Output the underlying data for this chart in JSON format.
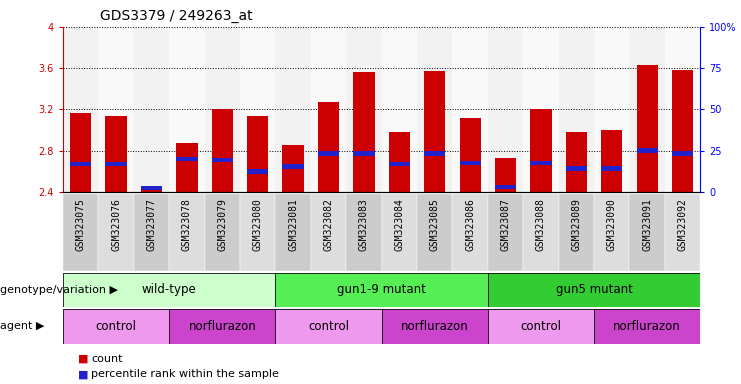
{
  "title": "GDS3379 / 249263_at",
  "samples": [
    "GSM323075",
    "GSM323076",
    "GSM323077",
    "GSM323078",
    "GSM323079",
    "GSM323080",
    "GSM323081",
    "GSM323082",
    "GSM323083",
    "GSM323084",
    "GSM323085",
    "GSM323086",
    "GSM323087",
    "GSM323088",
    "GSM323089",
    "GSM323090",
    "GSM323091",
    "GSM323092"
  ],
  "count_values": [
    3.17,
    3.14,
    2.45,
    2.87,
    3.2,
    3.14,
    2.86,
    3.27,
    3.56,
    2.98,
    3.57,
    3.12,
    2.73,
    3.2,
    2.98,
    3.0,
    3.63,
    3.58
  ],
  "percentile_values": [
    2.67,
    2.67,
    2.44,
    2.72,
    2.71,
    2.6,
    2.65,
    2.77,
    2.77,
    2.67,
    2.77,
    2.68,
    2.45,
    2.68,
    2.63,
    2.63,
    2.8,
    2.77
  ],
  "ymin": 2.4,
  "ymax": 4.0,
  "yticks_left": [
    2.4,
    2.8,
    3.2,
    3.6,
    4.0
  ],
  "ytick_labels_left": [
    "2.4",
    "2.8",
    "3.2",
    "3.6",
    "4"
  ],
  "yticks_right": [
    0,
    25,
    50,
    75,
    100
  ],
  "ytick_labels_right": [
    "0",
    "25",
    "50",
    "75",
    "100%"
  ],
  "grid_lines": [
    2.8,
    3.2,
    3.6,
    4.0
  ],
  "bar_color": "#cc0000",
  "percentile_color": "#2222cc",
  "bar_width": 0.6,
  "col_bg_odd": "#cccccc",
  "col_bg_even": "#e8e8e8",
  "genotype_groups": [
    {
      "label": "wild-type",
      "start": 0,
      "end": 5,
      "color": "#ccffcc"
    },
    {
      "label": "gun1-9 mutant",
      "start": 6,
      "end": 11,
      "color": "#55ee55"
    },
    {
      "label": "gun5 mutant",
      "start": 12,
      "end": 17,
      "color": "#33cc33"
    }
  ],
  "agent_groups": [
    {
      "label": "control",
      "start": 0,
      "end": 2,
      "color": "#ee99ee"
    },
    {
      "label": "norflurazon",
      "start": 3,
      "end": 5,
      "color": "#cc44cc"
    },
    {
      "label": "control",
      "start": 6,
      "end": 8,
      "color": "#ee99ee"
    },
    {
      "label": "norflurazon",
      "start": 9,
      "end": 11,
      "color": "#cc44cc"
    },
    {
      "label": "control",
      "start": 12,
      "end": 14,
      "color": "#ee99ee"
    },
    {
      "label": "norflurazon",
      "start": 15,
      "end": 17,
      "color": "#cc44cc"
    }
  ],
  "genotype_row_label": "genotype/variation",
  "agent_row_label": "agent",
  "legend_count_label": "count",
  "legend_percentile_label": "percentile rank within the sample",
  "title_fontsize": 10,
  "tick_fontsize": 7,
  "label_fontsize": 8,
  "annot_fontsize": 8.5
}
